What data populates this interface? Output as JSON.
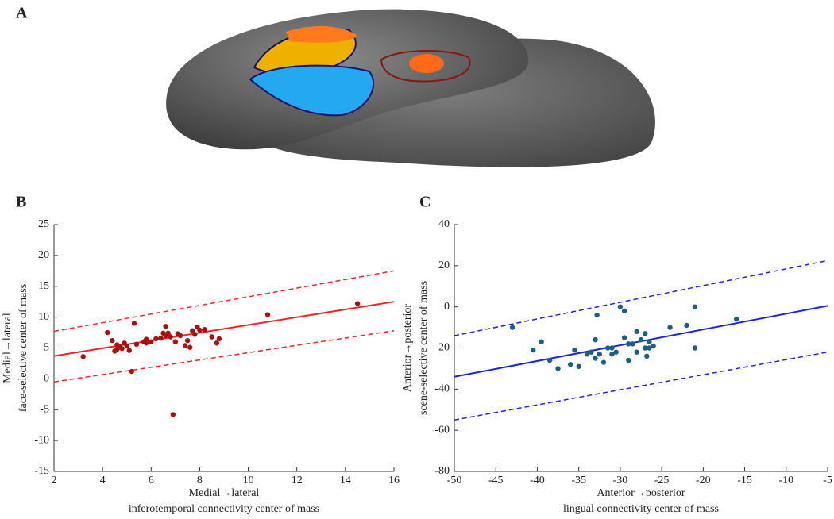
{
  "panel_labels": [
    "A",
    "B",
    "C"
  ],
  "chart_data": [
    {
      "type": "scatter",
      "xlabel": [
        "Medial→lateral",
        "inferotemporal connectivity center of mass"
      ],
      "ylabel": [
        "Medial→lateral",
        "face-selective center of mass"
      ],
      "xlim": [
        2,
        16
      ],
      "xticks": [
        2,
        4,
        6,
        8,
        10,
        12,
        14,
        16
      ],
      "ylim": [
        -15,
        25
      ],
      "yticks": [
        -15,
        -10,
        -5,
        0,
        5,
        10,
        15,
        20,
        25
      ],
      "color": "#e8262a",
      "point_color": "#a51212",
      "fit_line": {
        "x": [
          2,
          16
        ],
        "y": [
          3.7,
          12.5
        ]
      },
      "ci_upper": {
        "x": [
          2,
          16
        ],
        "y": [
          7.7,
          17.5
        ]
      },
      "ci_lower": {
        "x": [
          2,
          16
        ],
        "y": [
          -0.5,
          7.8
        ]
      },
      "x": [
        3.2,
        4.2,
        4.4,
        4.5,
        4.6,
        4.6,
        4.7,
        4.8,
        4.9,
        5.0,
        5.1,
        5.2,
        5.3,
        5.4,
        5.7,
        5.8,
        5.8,
        6.0,
        6.2,
        6.4,
        6.5,
        6.6,
        6.6,
        6.7,
        6.8,
        6.9,
        7.0,
        7.1,
        7.2,
        7.4,
        7.5,
        7.6,
        7.7,
        7.8,
        7.9,
        8.0,
        8.2,
        8.5,
        8.7,
        8.8,
        10.8,
        14.5
      ],
      "values": [
        3.6,
        7.5,
        6.2,
        4.5,
        5.5,
        4.8,
        5.2,
        4.9,
        5.8,
        5.3,
        4.6,
        1.2,
        9.0,
        5.6,
        6.0,
        5.8,
        6.4,
        6.0,
        6.5,
        6.6,
        7.4,
        8.5,
        7.0,
        7.4,
        6.8,
        -5.8,
        6.0,
        7.3,
        7.0,
        5.4,
        6.2,
        5.1,
        7.8,
        7.2,
        8.4,
        7.9,
        8.0,
        6.8,
        5.8,
        6.5,
        10.4,
        12.2
      ]
    },
    {
      "type": "scatter",
      "xlabel": [
        "Anterior→posterior",
        "lingual connectivity center of mass"
      ],
      "ylabel": [
        "Anterior→posterior",
        "scene-selective center of mass"
      ],
      "xlim": [
        -50,
        -5
      ],
      "xticks": [
        -50,
        -45,
        -40,
        -35,
        -30,
        -25,
        -20,
        -15,
        -10,
        -5
      ],
      "ylim": [
        -80,
        40
      ],
      "yticks": [
        -80,
        -60,
        -40,
        -20,
        0,
        20,
        40
      ],
      "color": "#1f23d8",
      "point_color": "#1d5f80",
      "fit_line": {
        "x": [
          -50,
          -5
        ],
        "y": [
          -34,
          0.5
        ]
      },
      "ci_upper": {
        "x": [
          -50,
          -5
        ],
        "y": [
          -14,
          22.5
        ]
      },
      "ci_lower": {
        "x": [
          -50,
          -5
        ],
        "y": [
          -55,
          -22
        ]
      },
      "x": [
        -43,
        -40.5,
        -39.5,
        -38.5,
        -37.5,
        -36,
        -35.5,
        -35,
        -34,
        -33.5,
        -33,
        -33,
        -32.8,
        -32.5,
        -32,
        -31.5,
        -31,
        -31,
        -30.5,
        -30,
        -29.5,
        -29.5,
        -29,
        -29,
        -28.5,
        -28,
        -28,
        -27.5,
        -27,
        -27,
        -26.8,
        -26.5,
        -26.5,
        -26,
        -24,
        -22,
        -21,
        -21,
        -16
      ],
      "values": [
        -10,
        -21,
        -17,
        -26,
        -30,
        -28,
        -21,
        -29,
        -23,
        -22,
        -25,
        -16,
        -4,
        -23,
        -27,
        -20,
        -23,
        -20,
        -22,
        0,
        -2,
        -15,
        -18,
        -26,
        -18,
        -22,
        -12,
        -16,
        -20,
        -13,
        -24,
        -17,
        -20,
        -19,
        -10,
        -9,
        -20,
        0,
        -6
      ]
    }
  ]
}
